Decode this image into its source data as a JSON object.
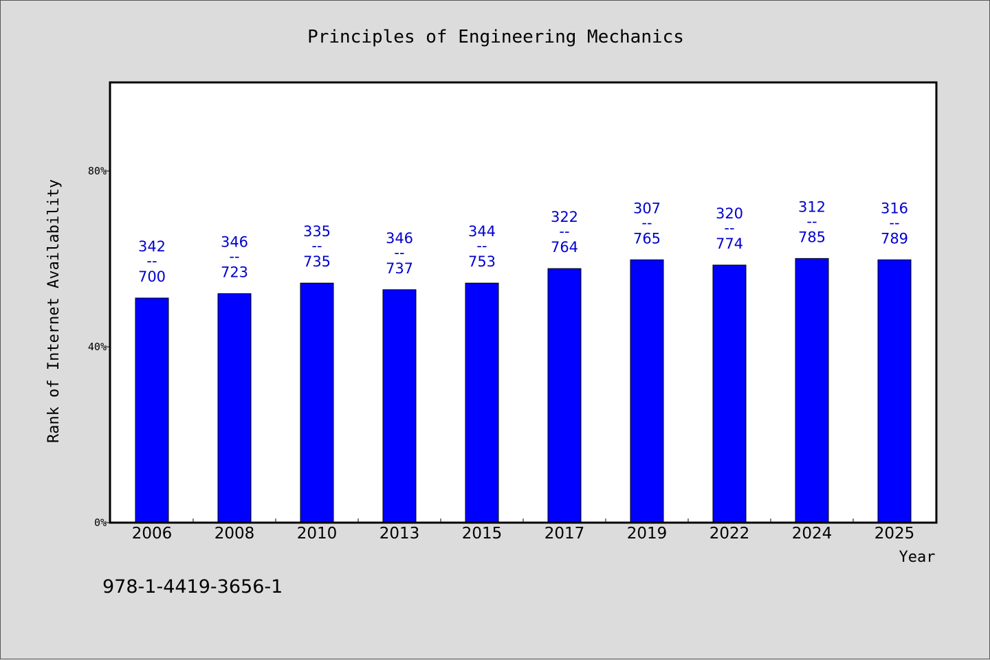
{
  "chart_data": {
    "type": "bar",
    "title": "Principles of Engineering Mechanics",
    "xlabel": "Year",
    "ylabel": "Rank of Internet Availability",
    "categories": [
      "2006",
      "2008",
      "2010",
      "2013",
      "2015",
      "2017",
      "2019",
      "2022",
      "2024",
      "2025"
    ],
    "values": [
      51.1,
      52.1,
      54.5,
      53.0,
      54.5,
      57.8,
      59.8,
      58.6,
      60.1,
      59.8
    ],
    "label_top": [
      "342",
      "346",
      "335",
      "346",
      "344",
      "322",
      "307",
      "320",
      "312",
      "316"
    ],
    "label_bottom": [
      "700",
      "723",
      "735",
      "737",
      "753",
      "764",
      "765",
      "774",
      "785",
      "789"
    ],
    "label_separator": "--",
    "y_unit": "%",
    "ylim": [
      0,
      100
    ],
    "yticks": [
      0,
      40,
      80
    ],
    "ytick_labels": [
      "0%",
      "40%",
      "80%"
    ],
    "grid": false,
    "legend": "none",
    "colors": {
      "bar": "#0000ff",
      "bar_label": "#0000cc",
      "background": "#dcdcdc",
      "plot_background": "#ffffff"
    }
  },
  "footer": {
    "isbn": "978-1-4419-3656-1"
  }
}
